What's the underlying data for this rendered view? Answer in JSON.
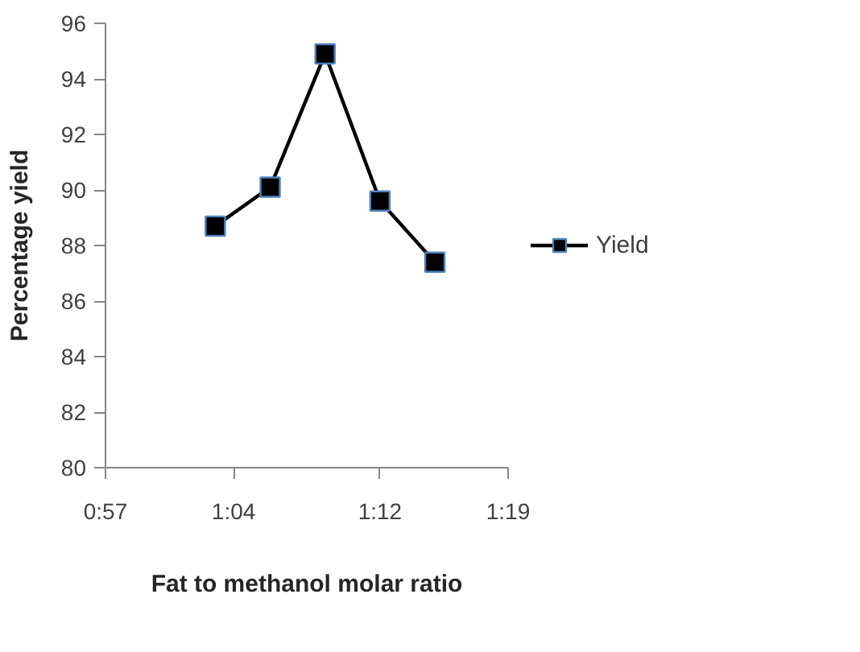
{
  "chart_data": {
    "type": "line",
    "xlabel": "Fat to methanol molar ratio",
    "ylabel": "Percentage yield",
    "x": [
      1.05,
      1.1,
      1.15,
      1.2,
      1.25
    ],
    "series": [
      {
        "name": "Yield",
        "color": "#000000",
        "values": [
          88.7,
          90.1,
          94.9,
          89.6,
          87.4
        ]
      }
    ],
    "xlim": [
      0.95,
      1.3167
    ],
    "xticks": [
      {
        "value": 0.95,
        "label": "0:57"
      },
      {
        "value": 1.0667,
        "label": "1:04"
      },
      {
        "value": 1.2,
        "label": "1:12"
      },
      {
        "value": 1.3167,
        "label": "1:19"
      }
    ],
    "ylim": [
      80,
      96
    ],
    "yticks": [
      80,
      82,
      84,
      86,
      88,
      90,
      92,
      94,
      96
    ],
    "grid": false,
    "legend": "right",
    "marker": "square",
    "line_style": "solid"
  }
}
